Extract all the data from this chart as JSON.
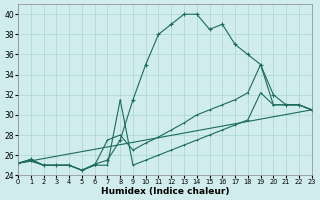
{
  "bg_color": "#d0ecec",
  "grid_color": "#aad4d4",
  "line_color": "#1a6b5a",
  "xlabel": "Humidex (Indice chaleur)",
  "xlim": [
    0,
    23
  ],
  "ylim": [
    24,
    41
  ],
  "xticks": [
    0,
    1,
    2,
    3,
    4,
    5,
    6,
    7,
    8,
    9,
    10,
    11,
    12,
    13,
    14,
    15,
    16,
    17,
    18,
    19,
    20,
    21,
    22,
    23
  ],
  "yticks": [
    24,
    26,
    28,
    30,
    32,
    34,
    36,
    38,
    40
  ],
  "curve_top": {
    "x": [
      0,
      1,
      2,
      3,
      4,
      5,
      6,
      7,
      8,
      9,
      10,
      11,
      12,
      13,
      14,
      15,
      16,
      17,
      18,
      19,
      20,
      21,
      22,
      23
    ],
    "y": [
      25.2,
      25.6,
      25.0,
      25.0,
      25.0,
      24.5,
      25.1,
      25.5,
      27.5,
      31.5,
      35.0,
      38.0,
      39.0,
      40.0,
      40.0,
      38.5,
      39.0,
      37.0,
      36.0,
      35.0,
      32.0,
      31.0,
      31.0,
      30.5
    ]
  },
  "curve_spike": {
    "x": [
      0,
      1,
      2,
      3,
      4,
      5,
      6,
      7,
      8,
      9,
      10,
      11,
      12,
      13,
      14,
      15,
      16,
      17,
      18,
      19,
      20,
      21,
      22,
      23
    ],
    "y": [
      25.2,
      25.5,
      25.0,
      25.0,
      25.0,
      24.5,
      25.0,
      25.0,
      31.5,
      25.0,
      25.5,
      26.0,
      26.5,
      27.0,
      27.5,
      28.0,
      28.5,
      29.0,
      29.5,
      32.2,
      31.0,
      31.0,
      31.0,
      30.5
    ]
  },
  "curve_mid": {
    "x": [
      0,
      1,
      2,
      3,
      4,
      5,
      6,
      7,
      8,
      9,
      10,
      11,
      12,
      13,
      14,
      15,
      16,
      17,
      18,
      19,
      20,
      21,
      22,
      23
    ],
    "y": [
      25.2,
      25.4,
      25.0,
      25.0,
      25.0,
      24.5,
      25.0,
      27.5,
      28.0,
      26.5,
      27.2,
      27.8,
      28.5,
      29.2,
      30.0,
      30.5,
      31.0,
      31.5,
      32.2,
      35.0,
      31.0,
      31.0,
      31.0,
      30.5
    ]
  },
  "curve_bot": {
    "x": [
      0,
      23
    ],
    "y": [
      25.2,
      30.5
    ]
  }
}
